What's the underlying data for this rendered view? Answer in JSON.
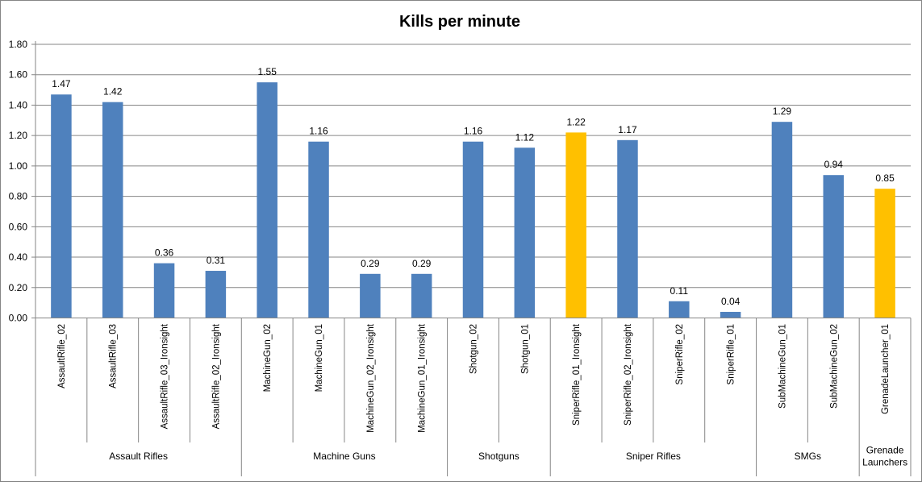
{
  "chart_data": {
    "type": "bar",
    "title": "Kills per minute",
    "xlabel": "",
    "ylabel": "",
    "ylim": [
      0,
      1.8
    ],
    "yticks": [
      "0.00",
      "0.20",
      "0.40",
      "0.60",
      "0.80",
      "1.00",
      "1.20",
      "1.40",
      "1.60",
      "1.80"
    ],
    "grid": true,
    "legend": "none",
    "colors": {
      "default": "#4F81BD",
      "highlight": "#FFC000",
      "grid": "#868686",
      "axis": "#868686",
      "text": "#000000"
    },
    "categories": [
      "AssaultRifle_02",
      "AssaultRifle_03",
      "AssaultRifle_03_Ironsight",
      "AssaultRifle_02_Ironsight",
      "MachineGun_02",
      "MachineGun_01",
      "MachineGun_02_Ironsight",
      "MachineGun_01_Ironsight",
      "Shotgun_02",
      "Shotgun_01",
      "SniperRifle_01_Ironsight",
      "SniperRifle_02_Ironsight",
      "SniperRifle_02",
      "SniperRifle_01",
      "SubMachineGun_01",
      "SubMachineGun_02",
      "GrenadeLauncher_01"
    ],
    "values": [
      1.47,
      1.42,
      0.36,
      0.31,
      1.55,
      1.16,
      0.29,
      0.29,
      1.16,
      1.12,
      1.22,
      1.17,
      0.11,
      0.04,
      1.29,
      0.94,
      0.85
    ],
    "data_labels": [
      "1.47",
      "1.42",
      "0.36",
      "0.31",
      "1.55",
      "1.16",
      "0.29",
      "0.29",
      "1.16",
      "1.12",
      "1.22",
      "1.17",
      "0.11",
      "0.04",
      "1.29",
      "0.94",
      "0.85"
    ],
    "highlighted": [
      false,
      false,
      false,
      false,
      false,
      false,
      false,
      false,
      false,
      false,
      true,
      false,
      false,
      false,
      false,
      false,
      true
    ],
    "groups": [
      {
        "name": [
          "Assault Rifles"
        ],
        "count": 4
      },
      {
        "name": [
          "Machine Guns"
        ],
        "count": 4
      },
      {
        "name": [
          "Shotguns"
        ],
        "count": 2
      },
      {
        "name": [
          "Sniper Rifles"
        ],
        "count": 4
      },
      {
        "name": [
          "SMGs"
        ],
        "count": 2
      },
      {
        "name": [
          "Grenade",
          "Launchers"
        ],
        "count": 1
      }
    ]
  }
}
